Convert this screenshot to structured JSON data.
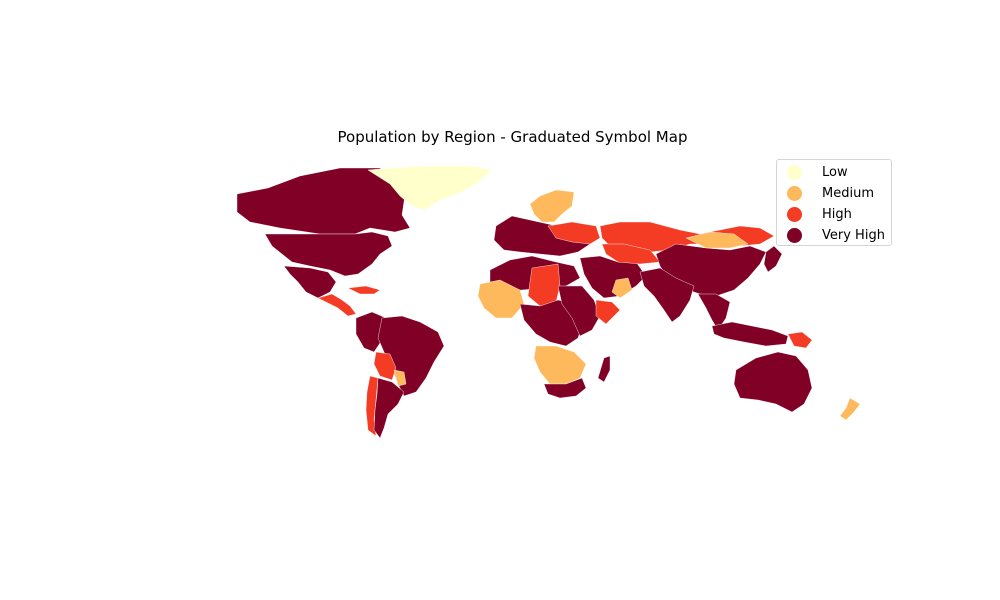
{
  "title": "Population by Region - Graduated Symbol Map",
  "legend": {
    "placement": "top-right",
    "items": [
      {
        "label": "Low",
        "color": "#ffffcc"
      },
      {
        "label": "Medium",
        "color": "#fdb95b"
      },
      {
        "label": "High",
        "color": "#f43c25"
      },
      {
        "label": "Very High",
        "color": "#800026"
      }
    ]
  },
  "regions": [
    {
      "name": "canada",
      "class": "Very High"
    },
    {
      "name": "greenland",
      "class": "Low"
    },
    {
      "name": "usa",
      "class": "Very High"
    },
    {
      "name": "mexico",
      "class": "Very High"
    },
    {
      "name": "central-america",
      "class": "High"
    },
    {
      "name": "caribbean",
      "class": "High"
    },
    {
      "name": "brazil",
      "class": "Very High"
    },
    {
      "name": "andes",
      "class": "Very High"
    },
    {
      "name": "bolivia",
      "class": "High"
    },
    {
      "name": "paraguay",
      "class": "Medium"
    },
    {
      "name": "chile",
      "class": "High"
    },
    {
      "name": "argentina",
      "class": "Very High"
    },
    {
      "name": "scandinavia",
      "class": "Medium"
    },
    {
      "name": "europe",
      "class": "Very High"
    },
    {
      "name": "eastern-europe",
      "class": "High"
    },
    {
      "name": "north-africa",
      "class": "Very High"
    },
    {
      "name": "sahel",
      "class": "High"
    },
    {
      "name": "west-africa",
      "class": "Medium"
    },
    {
      "name": "central-africa",
      "class": "Very High"
    },
    {
      "name": "east-africa",
      "class": "Very High"
    },
    {
      "name": "horn-of-africa",
      "class": "High"
    },
    {
      "name": "southern-africa",
      "class": "Medium"
    },
    {
      "name": "south-africa",
      "class": "Very High"
    },
    {
      "name": "madagascar",
      "class": "Very High"
    },
    {
      "name": "middle-east",
      "class": "Very High"
    },
    {
      "name": "oman",
      "class": "Medium"
    },
    {
      "name": "russia",
      "class": "High"
    },
    {
      "name": "kazakhstan",
      "class": "High"
    },
    {
      "name": "mongolia",
      "class": "Medium"
    },
    {
      "name": "china",
      "class": "Very High"
    },
    {
      "name": "india",
      "class": "Very High"
    },
    {
      "name": "southeast-asia",
      "class": "Very High"
    },
    {
      "name": "indonesia",
      "class": "Very High"
    },
    {
      "name": "png",
      "class": "High"
    },
    {
      "name": "japan",
      "class": "Very High"
    },
    {
      "name": "australia",
      "class": "Very High"
    },
    {
      "name": "new-zealand",
      "class": "Medium"
    }
  ]
}
